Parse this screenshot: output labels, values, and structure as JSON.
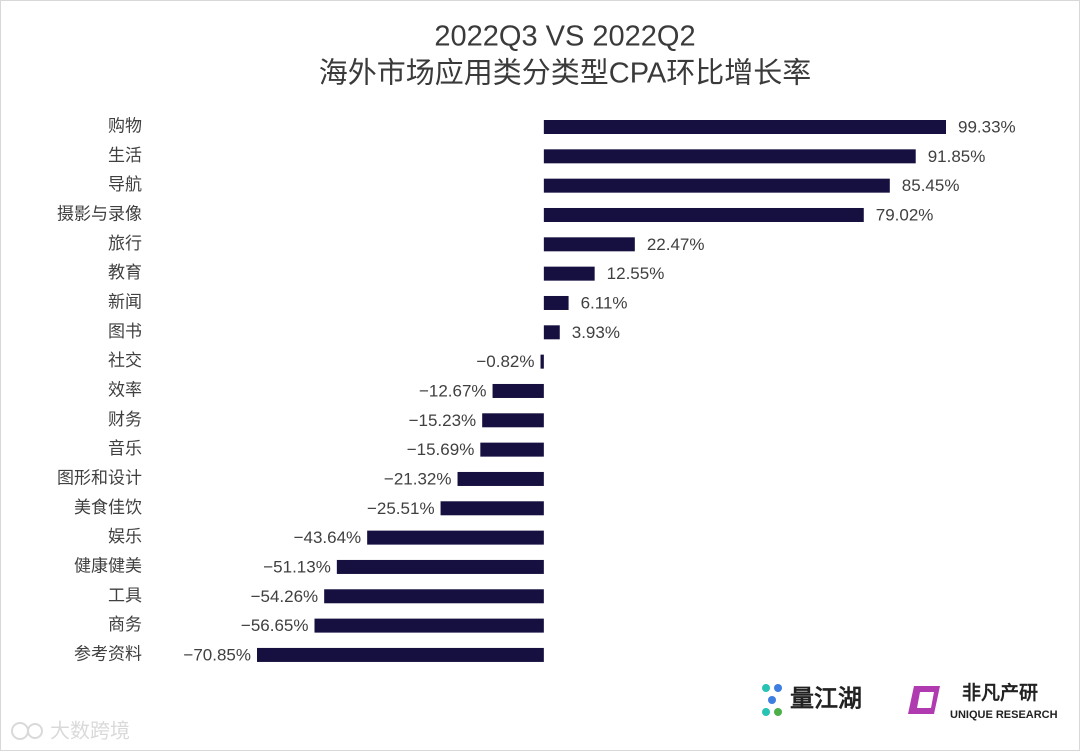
{
  "chart_data": {
    "type": "hbar",
    "title": "2022Q3 VS 2022Q2",
    "subtitle": "海外市场应用类分类型CPA环比增长率",
    "categories": [
      "购物",
      "生活",
      "导航",
      "摄影与录像",
      "旅行",
      "教育",
      "新闻",
      "图书",
      "社交",
      "效率",
      "财务",
      "音乐",
      "图形和设计",
      "美食佳饮",
      "娱乐",
      "健康健美",
      "工具",
      "商务",
      "参考资料"
    ],
    "values": [
      99.33,
      91.85,
      85.45,
      79.02,
      22.47,
      12.55,
      6.11,
      3.93,
      -0.82,
      -12.67,
      -15.23,
      -15.69,
      -21.32,
      -25.51,
      -43.64,
      -51.13,
      -54.26,
      -56.65,
      -70.85
    ],
    "value_labels": [
      "99.33%",
      "91.85%",
      "85.45%",
      "79.02%",
      "22.47%",
      "12.55%",
      "6.11%",
      "3.93%",
      "−0.82%",
      "−12.67%",
      "−15.23%",
      "−15.69%",
      "−21.32%",
      "−25.51%",
      "−43.64%",
      "−51.13%",
      "−54.26%",
      "−56.65%",
      "−70.85%"
    ],
    "color": "#15103f"
  },
  "footer": {
    "brand1": "量江湖",
    "brand2": "非凡产研",
    "brand2_sub": "UNIQUE RESEARCH",
    "watermark": "大数跨境"
  }
}
